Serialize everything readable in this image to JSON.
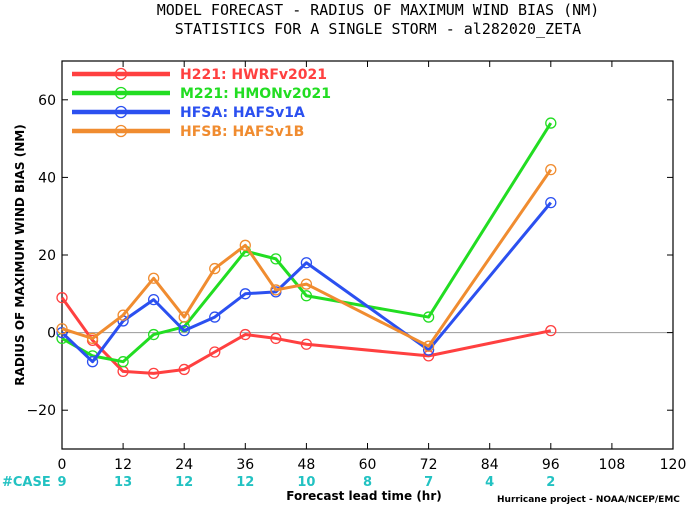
{
  "chart_data": {
    "type": "line",
    "title": "MODEL FORECAST - RADIUS OF MAXIMUM WIND BIAS (NM)",
    "subtitle": "STATISTICS FOR A SINGLE STORM - al282020_ZETA",
    "xlabel": "Forecast lead time (hr)",
    "ylabel": "RADIUS OF MAXIMUM WIND BIAS (NM)",
    "xlim": [
      0,
      120
    ],
    "ylim": [
      -30,
      70
    ],
    "xticks": [
      "0",
      "12",
      "24",
      "36",
      "48",
      "60",
      "72",
      "84",
      "96",
      "108",
      "120"
    ],
    "yticks": [
      "-20",
      "0",
      "20",
      "40",
      "60"
    ],
    "zero_line": true,
    "legend_position": "top-left",
    "case_label": "#CASE",
    "case_hours": [
      0,
      12,
      24,
      36,
      48,
      60,
      72,
      84,
      96
    ],
    "case_counts": [
      "9",
      "13",
      "12",
      "12",
      "10",
      "8",
      "7",
      "4",
      "2"
    ],
    "credit": "Hurricane project - NOAA/NCEP/EMC",
    "series": [
      {
        "name": "H221",
        "desc": "HWRFv2021",
        "color": "#ff4040",
        "x": [
          0,
          6,
          12,
          18,
          24,
          30,
          36,
          42,
          48,
          72,
          96
        ],
        "y": [
          9,
          -2,
          -10,
          -10.5,
          -9.5,
          -5,
          -0.5,
          -1.5,
          -3,
          -6,
          0.5
        ]
      },
      {
        "name": "M221",
        "desc": "HMONv2021",
        "color": "#22dd22",
        "x": [
          0,
          6,
          12,
          18,
          24,
          36,
          42,
          48,
          72,
          96
        ],
        "y": [
          -1.5,
          -6,
          -7.5,
          -0.5,
          1.5,
          21,
          19,
          9.5,
          4,
          54
        ]
      },
      {
        "name": "HFSA",
        "desc": "HAFSv1A",
        "color": "#2b50f0",
        "x": [
          0,
          6,
          12,
          18,
          24,
          30,
          36,
          42,
          48,
          72,
          96
        ],
        "y": [
          0,
          -7.5,
          3,
          8.5,
          0.5,
          4,
          10,
          10.5,
          18,
          -4.5,
          33.5
        ]
      },
      {
        "name": "HFSB",
        "desc": "HAFSv1B",
        "color": "#f08c30",
        "x": [
          0,
          6,
          12,
          18,
          24,
          30,
          36,
          42,
          48,
          72,
          96
        ],
        "y": [
          1,
          -1.5,
          4.5,
          14,
          4,
          16.5,
          22.5,
          11,
          12.5,
          -3.5,
          42
        ]
      }
    ]
  },
  "colors": {
    "case_label": "#22c2c2",
    "zero_line": "#999999"
  }
}
